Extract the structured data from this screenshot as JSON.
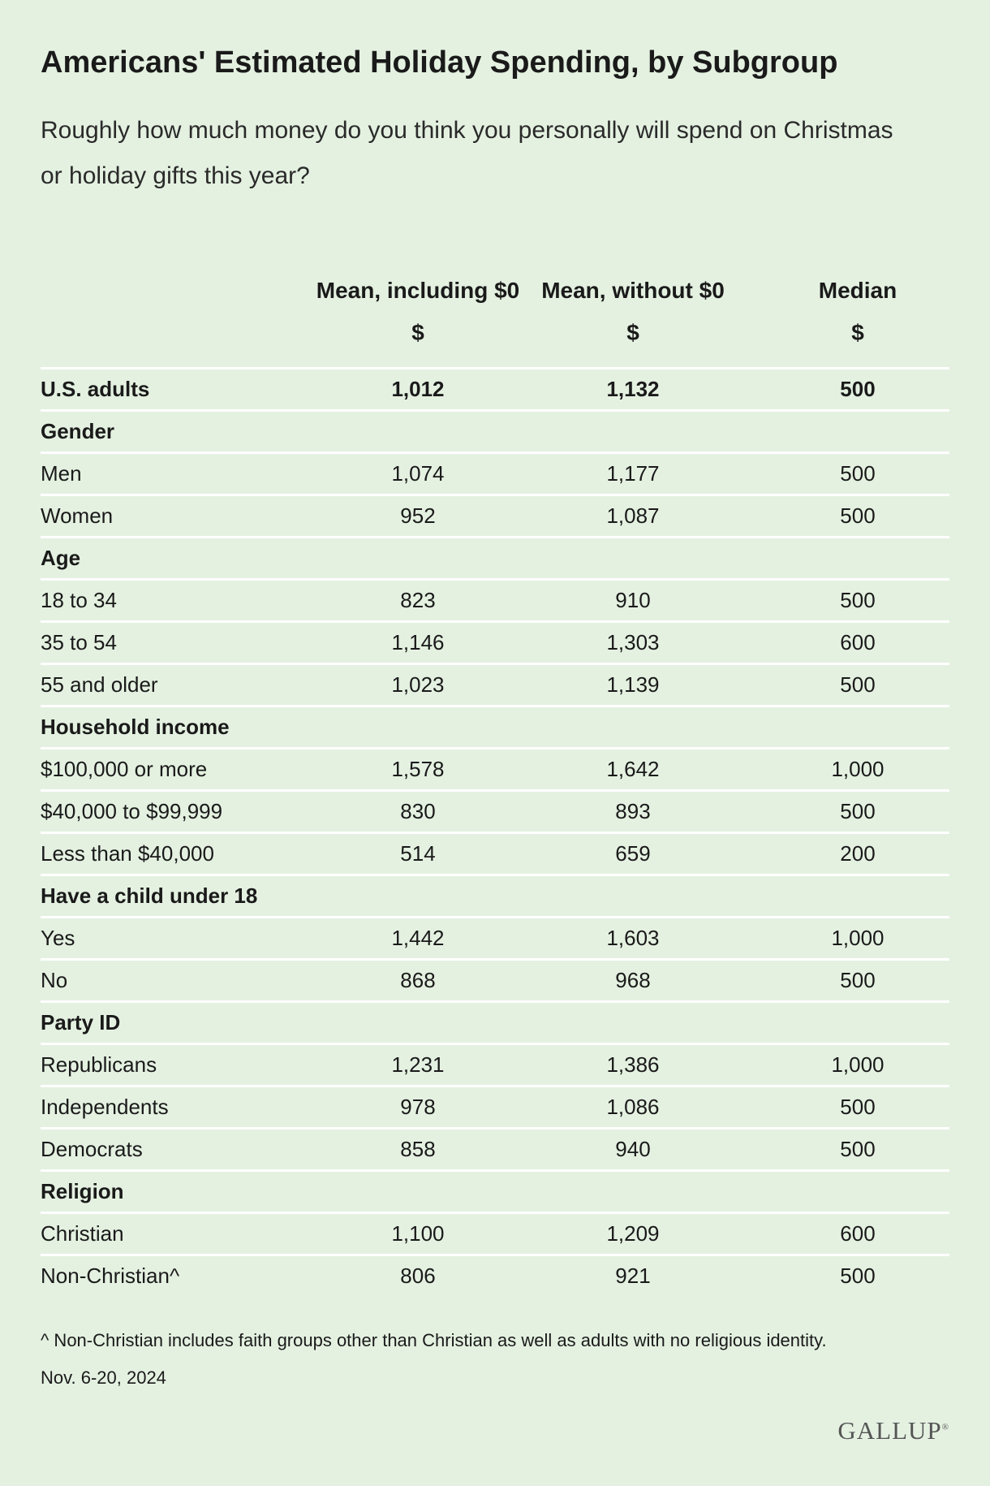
{
  "title": "Americans' Estimated Holiday Spending, by Subgroup",
  "subtitle": "Roughly how much money do you think you personally will spend on Christmas or holiday gifts this year?",
  "columns": [
    {
      "name": "Mean, including $0",
      "unit": "$"
    },
    {
      "name": "Mean, without $0",
      "unit": "$"
    },
    {
      "name": "Median",
      "unit": "$"
    }
  ],
  "chart_data": {
    "type": "table",
    "title": "Americans' Estimated Holiday Spending, by Subgroup",
    "columns": [
      "Mean, including $0",
      "Mean, without $0",
      "Median"
    ],
    "rows": [
      {
        "label": "U.S. adults",
        "kind": "total",
        "values": [
          "1,012",
          "1,132",
          "500"
        ]
      },
      {
        "label": "Gender",
        "kind": "group",
        "values": []
      },
      {
        "label": "Men",
        "kind": "item",
        "values": [
          "1,074",
          "1,177",
          "500"
        ]
      },
      {
        "label": "Women",
        "kind": "item",
        "values": [
          "952",
          "1,087",
          "500"
        ]
      },
      {
        "label": "Age",
        "kind": "group",
        "values": []
      },
      {
        "label": "18 to 34",
        "kind": "item",
        "values": [
          "823",
          "910",
          "500"
        ]
      },
      {
        "label": "35 to 54",
        "kind": "item",
        "values": [
          "1,146",
          "1,303",
          "600"
        ]
      },
      {
        "label": "55 and older",
        "kind": "item",
        "values": [
          "1,023",
          "1,139",
          "500"
        ]
      },
      {
        "label": "Household income",
        "kind": "group",
        "values": []
      },
      {
        "label": "$100,000 or more",
        "kind": "item",
        "values": [
          "1,578",
          "1,642",
          "1,000"
        ]
      },
      {
        "label": "$40,000 to $99,999",
        "kind": "item",
        "values": [
          "830",
          "893",
          "500"
        ]
      },
      {
        "label": "Less than $40,000",
        "kind": "item",
        "values": [
          "514",
          "659",
          "200"
        ]
      },
      {
        "label": "Have a child under 18",
        "kind": "group",
        "values": []
      },
      {
        "label": "Yes",
        "kind": "item",
        "values": [
          "1,442",
          "1,603",
          "1,000"
        ]
      },
      {
        "label": "No",
        "kind": "item",
        "values": [
          "868",
          "968",
          "500"
        ]
      },
      {
        "label": "Party ID",
        "kind": "group",
        "values": []
      },
      {
        "label": "Republicans",
        "kind": "item",
        "values": [
          "1,231",
          "1,386",
          "1,000"
        ]
      },
      {
        "label": "Independents",
        "kind": "item",
        "values": [
          "978",
          "1,086",
          "500"
        ]
      },
      {
        "label": "Democrats",
        "kind": "item",
        "values": [
          "858",
          "940",
          "500"
        ]
      },
      {
        "label": "Religion",
        "kind": "group",
        "values": []
      },
      {
        "label": "Christian",
        "kind": "item",
        "values": [
          "1,100",
          "1,209",
          "600"
        ]
      },
      {
        "label": "Non-Christian^",
        "kind": "item",
        "values": [
          "806",
          "921",
          "500"
        ]
      }
    ]
  },
  "footnote": "^ Non-Christian includes faith groups other than Christian as well as adults with no religious identity.",
  "date": "Nov. 6-20, 2024",
  "logo": "GALLUP",
  "colors": {
    "background": "#e4f1e1",
    "divider": "#ffffff",
    "text": "#1a1a1a"
  }
}
